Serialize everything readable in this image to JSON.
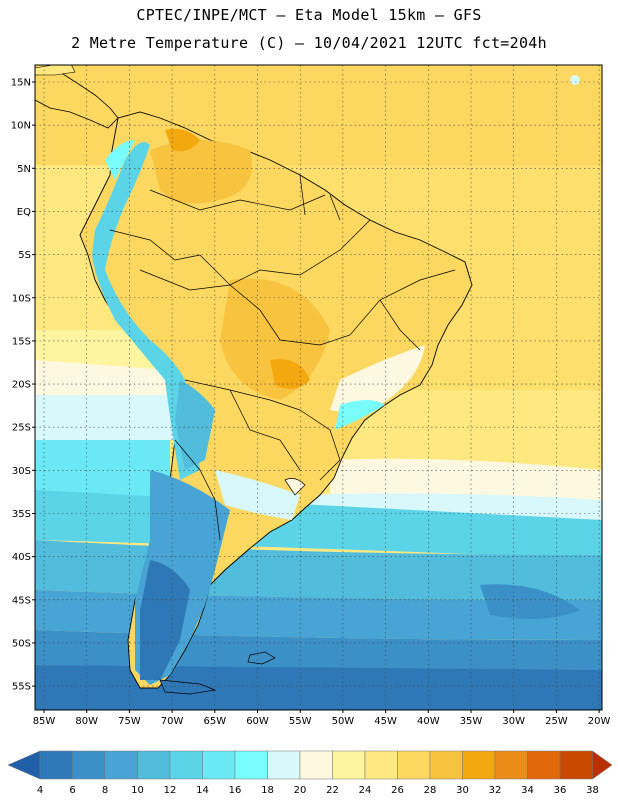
{
  "header": {
    "line1": "CPTEC/INPE/MCT –  Eta Model 15km – GFS",
    "line2": "2 Metre Temperature (C) – 10/04/2021 12UTC fct=204h"
  },
  "map": {
    "lat_labels": [
      "15N",
      "10N",
      "5N",
      "EQ",
      "5S",
      "10S",
      "15S",
      "20S",
      "25S",
      "30S",
      "35S",
      "40S",
      "45S",
      "50S",
      "55S"
    ],
    "lon_labels": [
      "85W",
      "80W",
      "75W",
      "70W",
      "65W",
      "60W",
      "55W",
      "50W",
      "45W",
      "40W",
      "35W",
      "30W",
      "25W",
      "20W"
    ],
    "lat_range": [
      15,
      -55
    ],
    "lon_range": [
      -85,
      -20
    ]
  },
  "legend": {
    "values": [
      "4",
      "6",
      "8",
      "10",
      "12",
      "14",
      "16",
      "18",
      "20",
      "22",
      "24",
      "26",
      "28",
      "30",
      "32",
      "34",
      "36",
      "38"
    ],
    "colors": [
      "#2060a8",
      "#2f78b8",
      "#3c90c8",
      "#48a4d4",
      "#52bcdc",
      "#5cd4e8",
      "#6ae8f4",
      "#78fcfc",
      "#d8f8fc",
      "#fff8e0",
      "#fff4a0",
      "#ffe880",
      "#fcd860",
      "#f8c440",
      "#f4a810",
      "#ec8c18",
      "#e06808",
      "#c84800",
      "#b83000"
    ]
  }
}
